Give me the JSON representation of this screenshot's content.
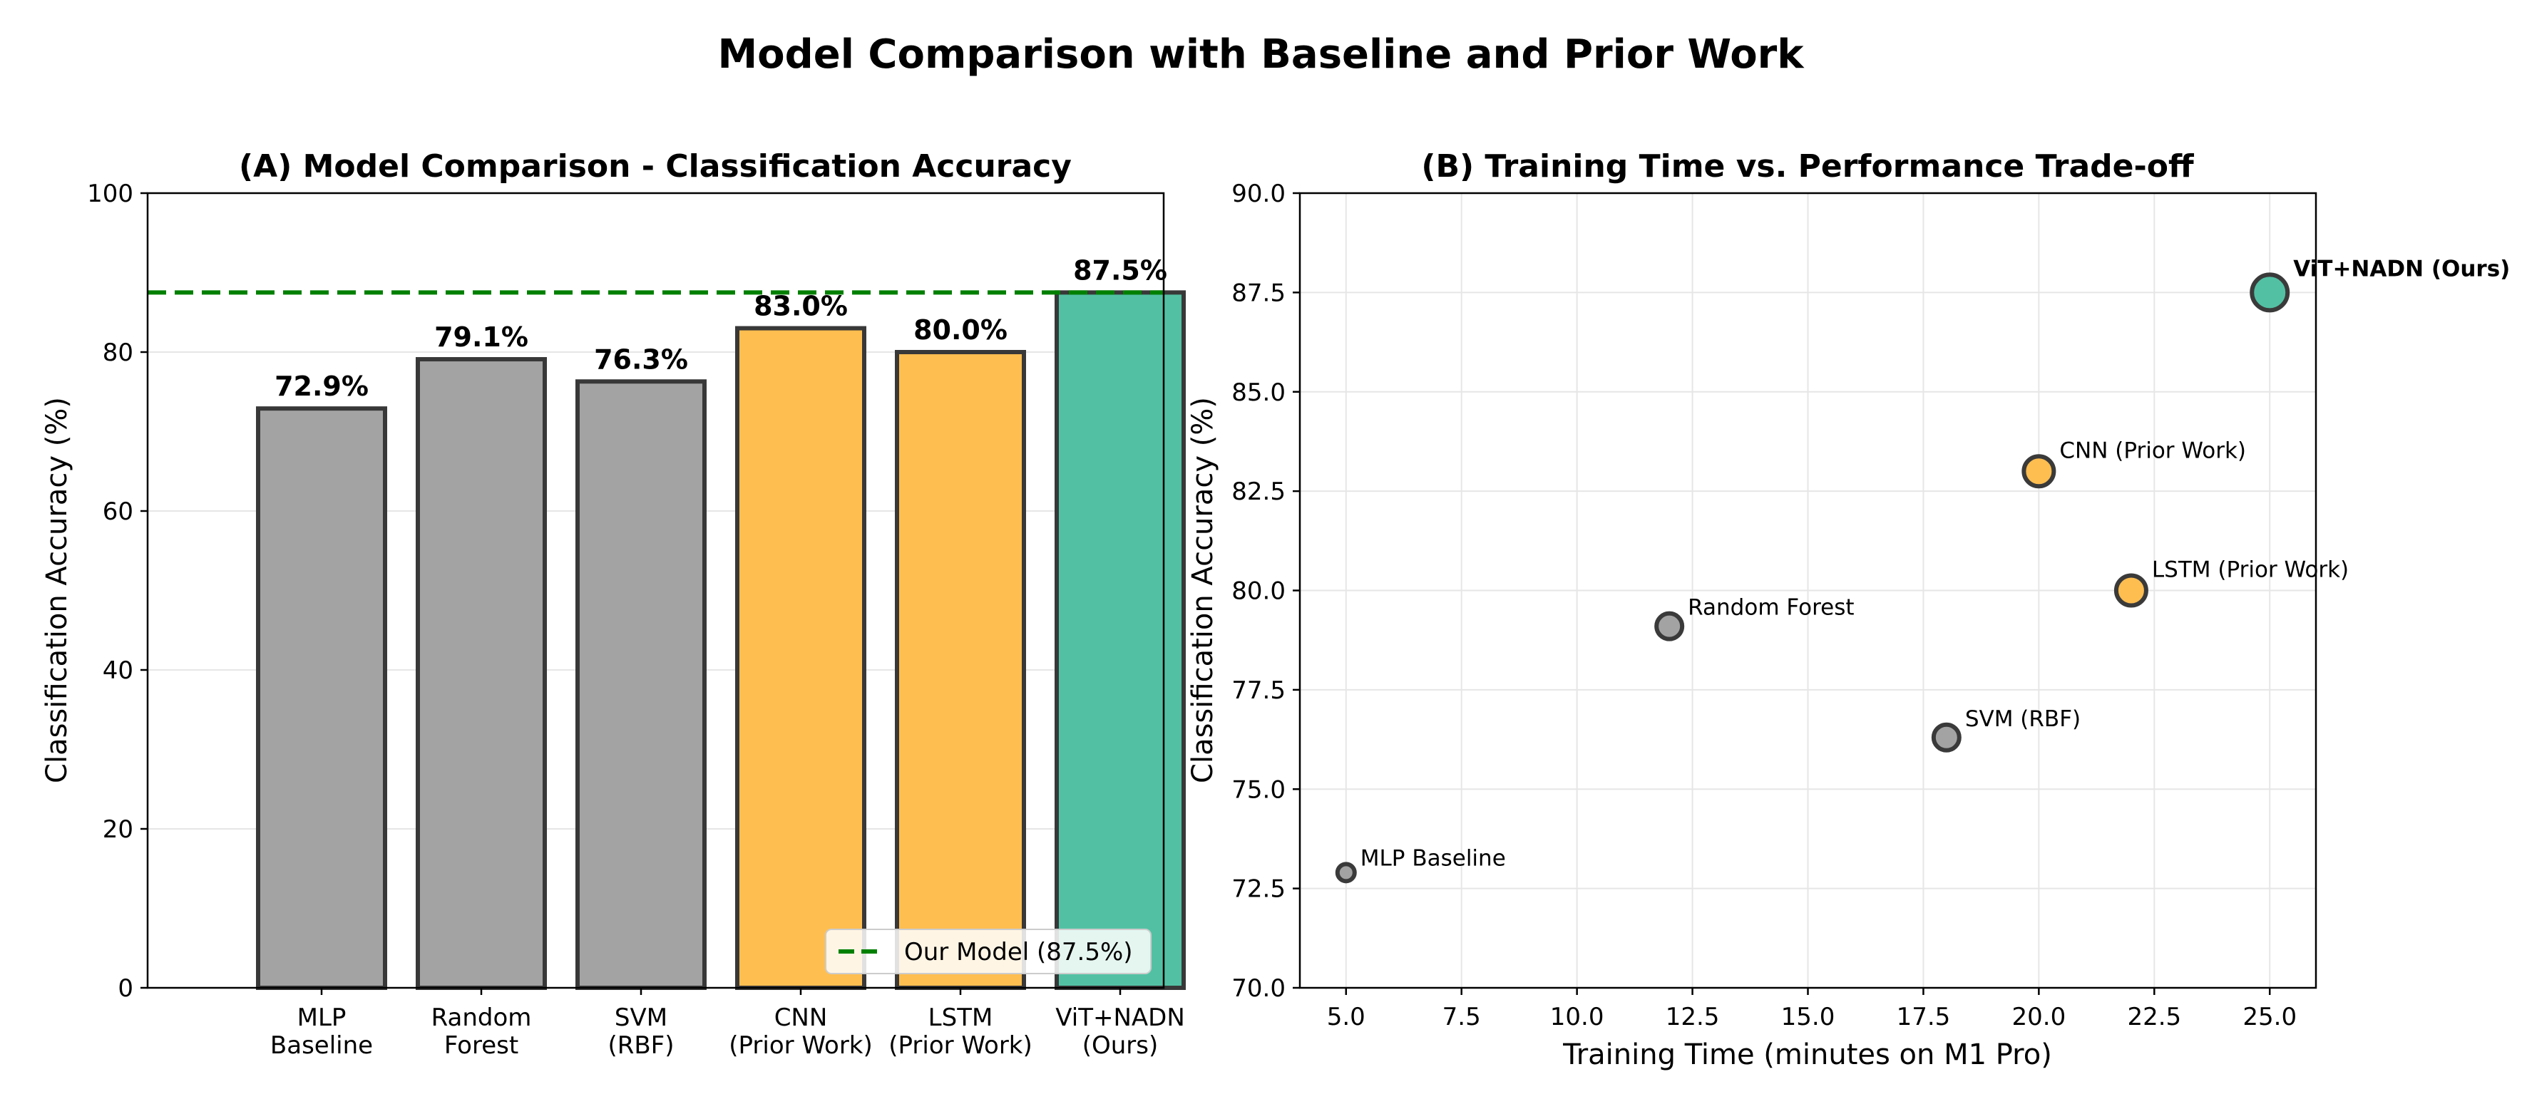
{
  "figure_title": "Model Comparison with Baseline and Prior Work",
  "chart_data": [
    {
      "type": "bar",
      "title": "(A) Model Comparison - Classification Accuracy",
      "xlabel": "",
      "ylabel": "Classification Accuracy (%)",
      "ylim": [
        0,
        100
      ],
      "yticks": [
        0,
        20,
        40,
        60,
        80,
        100
      ],
      "grid": true,
      "categories": [
        [
          "MLP",
          "Baseline"
        ],
        [
          "Random",
          "Forest"
        ],
        [
          "SVM",
          "(RBF)"
        ],
        [
          "CNN",
          "(Prior Work)"
        ],
        [
          "LSTM",
          "(Prior Work)"
        ],
        [
          "ViT+NADN",
          "(Ours)"
        ]
      ],
      "values": [
        72.9,
        79.1,
        76.3,
        83.0,
        80.0,
        87.5
      ],
      "data_labels": [
        "72.9%",
        "79.1%",
        "76.3%",
        "83.0%",
        "80.0%",
        "87.5%"
      ],
      "colors": [
        "#a3a3a3",
        "#a3a3a3",
        "#a3a3a3",
        "#ffbe50",
        "#ffbe50",
        "#52c1a3"
      ],
      "reference_line": {
        "value": 87.5,
        "label": "Our Model (87.5%)",
        "color": "#008000",
        "style": "dashed"
      },
      "legend_position": "lower right"
    },
    {
      "type": "scatter",
      "title": "(B) Training Time vs. Performance Trade-off",
      "xlabel": "Training Time (minutes on M1 Pro)",
      "ylabel": "Classification Accuracy (%)",
      "xlim": [
        4,
        26
      ],
      "ylim": [
        70,
        90
      ],
      "xticks": [
        "5.0",
        "7.5",
        "10.0",
        "12.5",
        "15.0",
        "17.5",
        "20.0",
        "22.5",
        "25.0"
      ],
      "yticks": [
        "70.0",
        "72.5",
        "75.0",
        "77.5",
        "80.0",
        "82.5",
        "85.0",
        "87.5",
        "90.0"
      ],
      "grid": true,
      "points": [
        {
          "label": "MLP Baseline",
          "x": 5,
          "y": 72.9,
          "color": "#a3a3a3",
          "size": 1,
          "bold": false
        },
        {
          "label": "Random Forest",
          "x": 12,
          "y": 79.1,
          "color": "#a3a3a3",
          "size": 2,
          "bold": false
        },
        {
          "label": "SVM (RBF)",
          "x": 18,
          "y": 76.3,
          "color": "#a3a3a3",
          "size": 2,
          "bold": false
        },
        {
          "label": "CNN (Prior Work)",
          "x": 20,
          "y": 83.0,
          "color": "#ffbe50",
          "size": 3,
          "bold": false
        },
        {
          "label": "LSTM (Prior Work)",
          "x": 22,
          "y": 80.0,
          "color": "#ffbe50",
          "size": 3,
          "bold": false
        },
        {
          "label": "ViT+NADN (Ours)",
          "x": 25,
          "y": 87.5,
          "color": "#52c1a3",
          "size": 4,
          "bold": true
        }
      ]
    }
  ]
}
